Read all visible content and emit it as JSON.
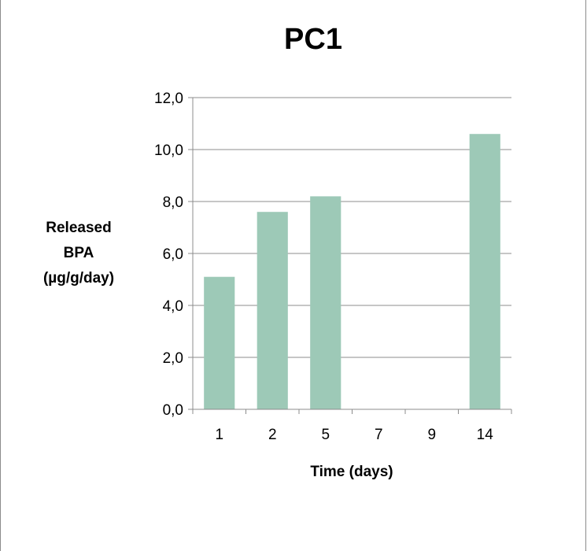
{
  "chart_data": {
    "type": "bar",
    "title": "PC1",
    "xlabel": "Time (days)",
    "ylabel_lines": [
      "Released",
      "BPA",
      "(µg/g/day)"
    ],
    "categories": [
      "1",
      "2",
      "5",
      "7",
      "9",
      "14"
    ],
    "values": [
      5.1,
      7.6,
      8.2,
      null,
      null,
      10.6
    ],
    "yticks": [
      "0,0",
      "2,0",
      "4,0",
      "6,0",
      "8,0",
      "10,0",
      "12,0"
    ],
    "ylim": [
      0,
      12
    ],
    "grid": true,
    "bar_color": "#9dc9b7",
    "grid_color": "#8c8c8c"
  }
}
